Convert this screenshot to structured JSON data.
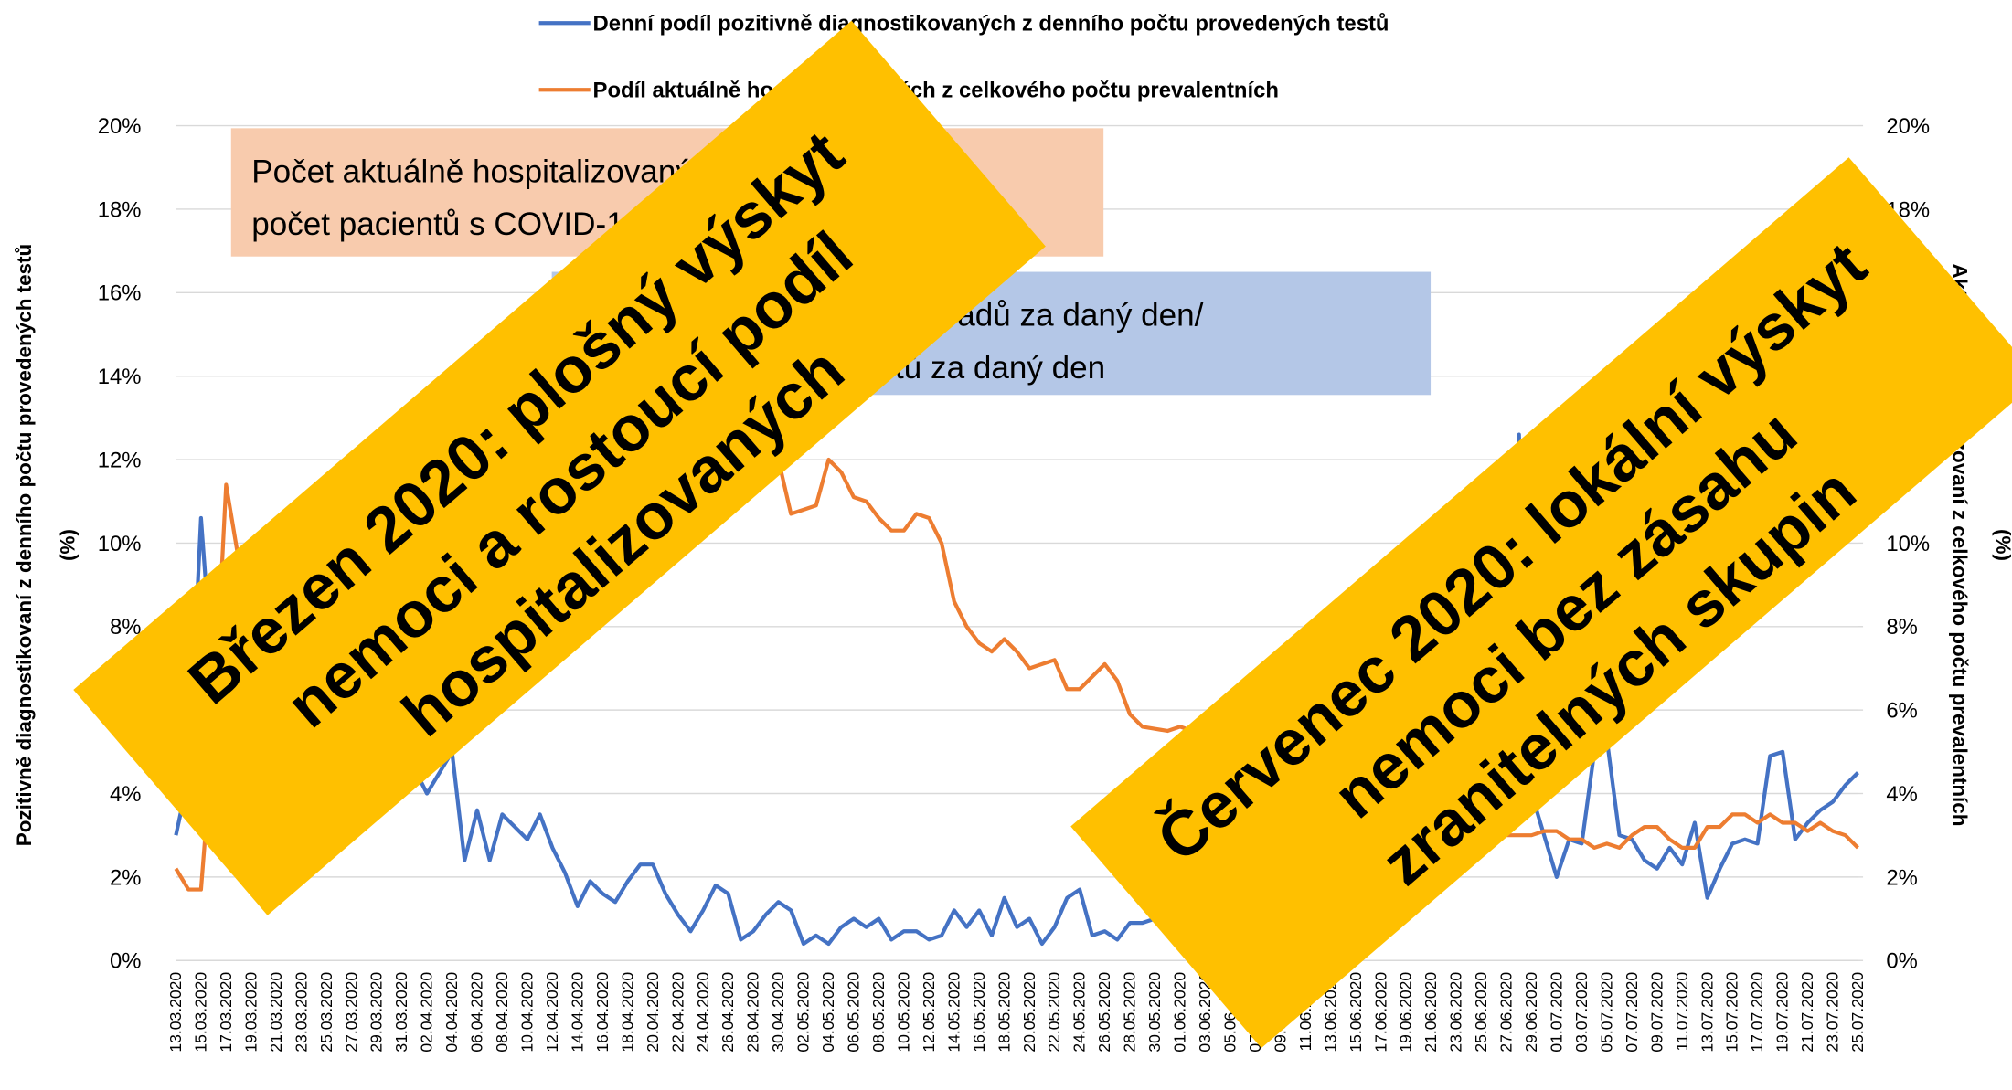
{
  "chart_data": {
    "type": "line",
    "categories": [
      "13.03.2020",
      null,
      "15.03.2020",
      null,
      "17.03.2020",
      null,
      "19.03.2020",
      null,
      "21.03.2020",
      null,
      "23.03.2020",
      null,
      "25.03.2020",
      null,
      "27.03.2020",
      null,
      "29.03.2020",
      null,
      "31.03.2020",
      null,
      "02.04.2020",
      null,
      "04.04.2020",
      null,
      "06.04.2020",
      null,
      "08.04.2020",
      null,
      "10.04.2020",
      null,
      "12.04.2020",
      null,
      "14.04.2020",
      null,
      "16.04.2020",
      null,
      "18.04.2020",
      null,
      "20.04.2020",
      null,
      "22.04.2020",
      null,
      "24.04.2020",
      null,
      "26.04.2020",
      null,
      "28.04.2020",
      null,
      "30.04.2020",
      null,
      "02.05.2020",
      null,
      "04.05.2020",
      null,
      "06.05.2020",
      null,
      "08.05.2020",
      null,
      "10.05.2020",
      null,
      "12.05.2020",
      null,
      "14.05.2020",
      null,
      "16.05.2020",
      null,
      "18.05.2020",
      null,
      "20.05.2020",
      null,
      "22.05.2020",
      null,
      "24.05.2020",
      null,
      "26.05.2020",
      null,
      "28.05.2020",
      null,
      "30.05.2020",
      null,
      "01.06.2020",
      null,
      "03.06.2020",
      null,
      "05.06.2020",
      null,
      "07.06.2020",
      null,
      "09.06.2020",
      null,
      "11.06.2020",
      null,
      "13.06.2020",
      null,
      "15.06.2020",
      null,
      "17.06.2020",
      null,
      "19.06.2020",
      null,
      "21.06.2020",
      null,
      "23.06.2020",
      null,
      "25.06.2020",
      null,
      "27.06.2020",
      null,
      "29.06.2020",
      null,
      "01.07.2020",
      null,
      "03.07.2020",
      null,
      "05.07.2020",
      null,
      "07.07.2020",
      null,
      "09.07.2020",
      null,
      "11.07.2020",
      null,
      "13.07.2020",
      null,
      "15.07.2020",
      null,
      "17.07.2020",
      null,
      "19.07.2020",
      null,
      "21.07.2020",
      null,
      "23.07.2020",
      null,
      "25.07.2020"
    ],
    "series": [
      {
        "name": "Denní podíl pozitivně diagnostikovaných z denního počtu provedených testů",
        "color": "#4472c4",
        "values": [
          3.0,
          4.4,
          10.6,
          6.5,
          8.8,
          7.2,
          6.0,
          7.5,
          6.8,
          6.2,
          5.8,
          6.0,
          5.5,
          5.2,
          5.6,
          5.0,
          4.8,
          5.2,
          4.9,
          4.6,
          4.0,
          4.5,
          5.0,
          2.4,
          3.6,
          2.4,
          3.5,
          3.2,
          2.9,
          3.5,
          2.7,
          2.1,
          1.3,
          1.9,
          1.6,
          1.4,
          1.9,
          2.3,
          2.3,
          1.6,
          1.1,
          0.7,
          1.2,
          1.8,
          1.6,
          0.5,
          0.7,
          1.1,
          1.4,
          1.2,
          0.4,
          0.6,
          0.4,
          0.8,
          1.0,
          0.8,
          1.0,
          0.5,
          0.7,
          0.7,
          0.5,
          0.6,
          1.2,
          0.8,
          1.2,
          0.6,
          1.5,
          0.8,
          1.0,
          0.4,
          0.8,
          1.5,
          1.7,
          0.6,
          0.7,
          0.5,
          0.9,
          0.9,
          1.0,
          1.8,
          0.6,
          0.9,
          1.0,
          1.2,
          0.9,
          1.1,
          1.3,
          1.0,
          1.4,
          1.2,
          1.5,
          1.3,
          1.6,
          1.8,
          1.5,
          1.9,
          2.1,
          1.8,
          2.3,
          2.0,
          2.5,
          2.2,
          2.8,
          3.0,
          2.6,
          3.2,
          3.5,
          12.6,
          4.0,
          3.0,
          2.0,
          2.9,
          2.8,
          5.0,
          5.3,
          3.0,
          2.9,
          2.4,
          2.2,
          2.7,
          2.3,
          3.3,
          1.5,
          2.2,
          2.8,
          2.9,
          2.8,
          4.9,
          5.0,
          2.9,
          3.3,
          3.6,
          3.8,
          4.2,
          4.5
        ]
      },
      {
        "name": "Podíl aktuálně hospitalizovaných z celkového počtu prevalentních",
        "color": "#ed7d31",
        "axis": "y2",
        "values": [
          2.2,
          1.7,
          1.7,
          5.5,
          11.4,
          9.6,
          8.5,
          9.0,
          9.5,
          9.8,
          10.2,
          10.0,
          10.5,
          10.8,
          11.0,
          11.2,
          11.5,
          11.3,
          11.8,
          12.0,
          12.3,
          12.1,
          12.5,
          12.8,
          12.6,
          13.0,
          13.2,
          13.0,
          13.4,
          13.6,
          13.3,
          13.5,
          13.8,
          13.6,
          13.4,
          13.7,
          13.5,
          13.2,
          13.4,
          13.0,
          12.8,
          13.0,
          12.6,
          12.4,
          12.5,
          12.2,
          12.0,
          11.9,
          12.0,
          10.7,
          10.8,
          10.9,
          12.0,
          11.7,
          11.1,
          11.0,
          10.6,
          10.3,
          10.3,
          10.7,
          10.6,
          10.0,
          8.6,
          8.0,
          7.6,
          7.4,
          7.7,
          7.4,
          7.0,
          7.1,
          7.2,
          6.5,
          6.5,
          6.8,
          7.1,
          6.7,
          5.9,
          5.6,
          5.55,
          5.5,
          5.6,
          5.5,
          5.3,
          5.2,
          5.0,
          4.9,
          4.8,
          4.7,
          4.5,
          4.4,
          4.3,
          4.2,
          4.1,
          4.0,
          3.9,
          3.8,
          3.7,
          3.6,
          3.5,
          3.5,
          3.4,
          3.3,
          3.3,
          3.2,
          3.2,
          3.1,
          3.0,
          3.0,
          3.0,
          3.1,
          3.1,
          2.9,
          2.9,
          2.7,
          2.8,
          2.7,
          3.0,
          3.2,
          3.2,
          2.9,
          2.7,
          2.7,
          3.2,
          3.2,
          3.5,
          3.5,
          3.3,
          3.5,
          3.3,
          3.3,
          3.1,
          3.3,
          3.1,
          3.0,
          2.7
        ]
      }
    ],
    "ylim": [
      0,
      20
    ],
    "yticks": [
      {
        "value": 0,
        "label": "0%"
      },
      {
        "value": 2,
        "label": "2%"
      },
      {
        "value": 4,
        "label": "4%"
      },
      {
        "value": 6,
        "label": "6%"
      },
      {
        "value": 8,
        "label": "8%"
      },
      {
        "value": 10,
        "label": "10%"
      },
      {
        "value": 12,
        "label": "12%"
      },
      {
        "value": 14,
        "label": "14%"
      },
      {
        "value": 16,
        "label": "16%"
      },
      {
        "value": 18,
        "label": "18%"
      },
      {
        "value": 20,
        "label": "20%"
      }
    ],
    "y2lim": [
      0,
      20
    ],
    "y2ticks": [
      {
        "value": 0,
        "label": "0%"
      },
      {
        "value": 2,
        "label": "2%"
      },
      {
        "value": 4,
        "label": "4%"
      },
      {
        "value": 6,
        "label": "6%"
      },
      {
        "value": 8,
        "label": "8%"
      },
      {
        "value": 10,
        "label": "10%"
      },
      {
        "value": 12,
        "label": "12%"
      },
      {
        "value": 14,
        "label": "14%"
      },
      {
        "value": 16,
        "label": "16%"
      },
      {
        "value": 18,
        "label": "18%"
      },
      {
        "value": 20,
        "label": "20%"
      }
    ],
    "grid": true,
    "legend": "top",
    "ylabel": [
      "Pozitivně diagnostikovaní z denního počtu provedených testů",
      "(%)"
    ],
    "y2label": [
      "Aktuálně hospitalizovaní z celkového počtu prevalentních",
      "(%)"
    ],
    "annotations": [
      {
        "lines": [
          "Počet aktuálně hospitalizovaných za daný den/",
          "počet pacientů s COVID-19"
        ],
        "color": "#f8cbad"
      },
      {
        "lines": [
          "Počet nově pozitivních případů za daný den/",
          "počet provedených testů za daný den"
        ],
        "color": "#b4c7e7"
      }
    ],
    "banners": [
      {
        "lines": [
          "Březen 2020: plošný výskyt",
          "nemoci a rostoucí podíl",
          "hospitalizovaných"
        ],
        "color": "#ffc000"
      },
      {
        "lines": [
          "Červenec 2020: lokální výskyt",
          "nemoci bez zásahu",
          "zranitelných skupin"
        ],
        "color": "#ffc000"
      }
    ]
  }
}
